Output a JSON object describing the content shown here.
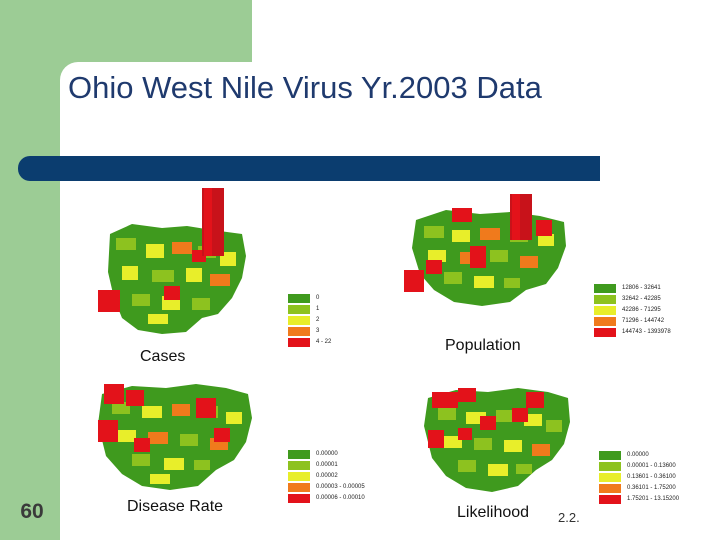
{
  "slide": {
    "title": "Ohio West Nile Virus Yr.2003 Data",
    "number": "60",
    "corner_note": "2.2."
  },
  "panels": {
    "cases": {
      "caption": "Cases",
      "legend": [
        "0",
        "1",
        "2",
        "3",
        "4 - 22"
      ]
    },
    "population": {
      "caption": "Population",
      "legend": [
        "12806 - 32641",
        "32642 - 42285",
        "42286 - 71295",
        "71296 - 144742",
        "144743 - 1393978"
      ]
    },
    "disease_rate": {
      "caption": "Disease Rate",
      "legend": [
        "0.00000",
        "0.00001",
        "0.00002",
        "0.00003 - 0.00005",
        "0.00006 - 0.00010"
      ]
    },
    "likelihood": {
      "caption": "Likelihood",
      "legend": [
        "0.00000",
        "0.00001 - 0.13600",
        "0.13601 - 0.36100",
        "0.36101 - 1.75200",
        "1.75201 - 13.15200"
      ]
    }
  },
  "colors": {
    "class_1": "#3f9a1e",
    "class_2": "#8dc21f",
    "class_3": "#e8ee2a",
    "class_4": "#f07a1c",
    "class_5": "#e3121a",
    "title": "#1f3a6e",
    "bar": "#0b3d6f",
    "background": "#9ccc95"
  }
}
